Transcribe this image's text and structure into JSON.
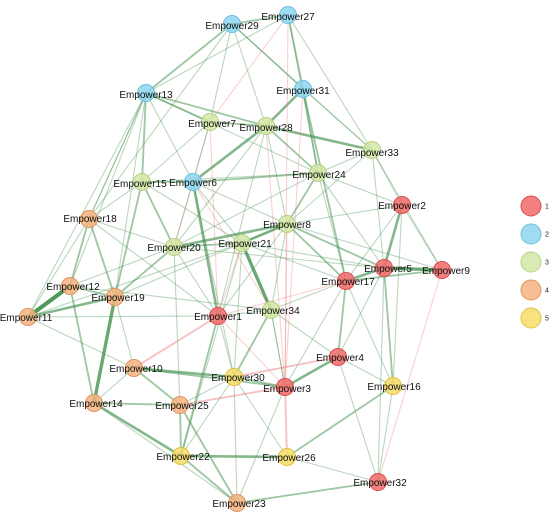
{
  "nodes": [
    {
      "id": "Empower1",
      "label": "Empower1",
      "group": "1"
    },
    {
      "id": "Empower2",
      "label": "Empower2",
      "group": "1"
    },
    {
      "id": "Empower3",
      "label": "Empower3",
      "group": "1"
    },
    {
      "id": "Empower4",
      "label": "Empower4",
      "group": "1"
    },
    {
      "id": "Empower5",
      "label": "Empower5",
      "group": "1"
    },
    {
      "id": "Empower9",
      "label": "Empower9",
      "group": "1"
    },
    {
      "id": "Empower17",
      "label": "Empower17",
      "group": "1"
    },
    {
      "id": "Empower32",
      "label": "Empower32",
      "group": "1"
    },
    {
      "id": "Empower6",
      "label": "Empower6",
      "group": "2"
    },
    {
      "id": "Empower13",
      "label": "Empower13",
      "group": "2"
    },
    {
      "id": "Empower27",
      "label": "Empower27",
      "group": "2"
    },
    {
      "id": "Empower29",
      "label": "Empower29",
      "group": "2"
    },
    {
      "id": "Empower31",
      "label": "Empower31",
      "group": "2"
    },
    {
      "id": "Empower7",
      "label": "Empower7",
      "group": "3"
    },
    {
      "id": "Empower8",
      "label": "Empower8",
      "group": "3"
    },
    {
      "id": "Empower15",
      "label": "Empower15",
      "group": "3"
    },
    {
      "id": "Empower20",
      "label": "Empower20",
      "group": "3"
    },
    {
      "id": "Empower21",
      "label": "Empower21",
      "group": "3"
    },
    {
      "id": "Empower24",
      "label": "Empower24",
      "group": "3"
    },
    {
      "id": "Empower28",
      "label": "Empower28",
      "group": "3"
    },
    {
      "id": "Empower33",
      "label": "Empower33",
      "group": "3"
    },
    {
      "id": "Empower34",
      "label": "Empower34",
      "group": "3"
    },
    {
      "id": "Empower10",
      "label": "Empower10",
      "group": "4"
    },
    {
      "id": "Empower11",
      "label": "Empower11",
      "group": "4"
    },
    {
      "id": "Empower12",
      "label": "Empower12",
      "group": "4"
    },
    {
      "id": "Empower14",
      "label": "Empower14",
      "group": "4"
    },
    {
      "id": "Empower18",
      "label": "Empower18",
      "group": "4"
    },
    {
      "id": "Empower19",
      "label": "Empower19",
      "group": "4"
    },
    {
      "id": "Empower23",
      "label": "Empower23",
      "group": "4"
    },
    {
      "id": "Empower25",
      "label": "Empower25",
      "group": "4"
    },
    {
      "id": "Empower16",
      "label": "Empower16",
      "group": "5"
    },
    {
      "id": "Empower22",
      "label": "Empower22",
      "group": "5"
    },
    {
      "id": "Empower26",
      "label": "Empower26",
      "group": "5"
    },
    {
      "id": "Empower30",
      "label": "Empower30",
      "group": "5"
    }
  ],
  "edges": [
    [
      "Empower11",
      "Empower12",
      5
    ],
    [
      "Empower11",
      "Empower19",
      3
    ],
    [
      "Empower11",
      "Empower10",
      1
    ],
    [
      "Empower11",
      "Empower18",
      1
    ],
    [
      "Empower11",
      "Empower1",
      1
    ],
    [
      "Empower11",
      "Empower21",
      1
    ],
    [
      "Empower12",
      "Empower19",
      2
    ],
    [
      "Empower12",
      "Empower18",
      2
    ],
    [
      "Empower12",
      "Empower14",
      2
    ],
    [
      "Empower12",
      "Empower20",
      1
    ],
    [
      "Empower12",
      "Empower34",
      1
    ],
    [
      "Empower19",
      "Empower14",
      4
    ],
    [
      "Empower19",
      "Empower18",
      2
    ],
    [
      "Empower19",
      "Empower15",
      2
    ],
    [
      "Empower19",
      "Empower10",
      1
    ],
    [
      "Empower19",
      "Empower20",
      2
    ],
    [
      "Empower19",
      "Empower8",
      1
    ],
    [
      "Empower19",
      "Empower13",
      1
    ],
    [
      "Empower18",
      "Empower15",
      1
    ],
    [
      "Empower18",
      "Empower20",
      1
    ],
    [
      "Empower18",
      "Empower13",
      1
    ],
    [
      "Empower18",
      "Empower29",
      1
    ],
    [
      "Empower18",
      "Empower1",
      1
    ],
    [
      "Empower10",
      "Empower1",
      2,
      "r"
    ],
    [
      "Empower10",
      "Empower30",
      3
    ],
    [
      "Empower10",
      "Empower25",
      2
    ],
    [
      "Empower10",
      "Empower14",
      1
    ],
    [
      "Empower10",
      "Empower3",
      2
    ],
    [
      "Empower14",
      "Empower22",
      3
    ],
    [
      "Empower14",
      "Empower25",
      2
    ],
    [
      "Empower14",
      "Empower23",
      1
    ],
    [
      "Empower25",
      "Empower22",
      2
    ],
    [
      "Empower25",
      "Empower3",
      2,
      "r"
    ],
    [
      "Empower25",
      "Empower30",
      1
    ],
    [
      "Empower25",
      "Empower23",
      2
    ],
    [
      "Empower25",
      "Empower20",
      1
    ],
    [
      "Empower22",
      "Empower23",
      2
    ],
    [
      "Empower22",
      "Empower26",
      3
    ],
    [
      "Empower22",
      "Empower1",
      2
    ],
    [
      "Empower22",
      "Empower30",
      1
    ],
    [
      "Empower22",
      "Empower21",
      1
    ],
    [
      "Empower23",
      "Empower32",
      2
    ],
    [
      "Empower23",
      "Empower30",
      1
    ],
    [
      "Empower23",
      "Empower3",
      1
    ],
    [
      "Empower26",
      "Empower3",
      2,
      "r"
    ],
    [
      "Empower26",
      "Empower16",
      2
    ],
    [
      "Empower26",
      "Empower30",
      1
    ],
    [
      "Empower26",
      "Empower32",
      1
    ],
    [
      "Empower32",
      "Empower16",
      1
    ],
    [
      "Empower32",
      "Empower9",
      1,
      "r"
    ],
    [
      "Empower32",
      "Empower5",
      1
    ],
    [
      "Empower32",
      "Empower4",
      1
    ],
    [
      "Empower16",
      "Empower5",
      2
    ],
    [
      "Empower16",
      "Empower4",
      1
    ],
    [
      "Empower16",
      "Empower17",
      1
    ],
    [
      "Empower16",
      "Empower2",
      1
    ],
    [
      "Empower3",
      "Empower4",
      3
    ],
    [
      "Empower3",
      "Empower30",
      2
    ],
    [
      "Empower3",
      "Empower1",
      1,
      "r"
    ],
    [
      "Empower3",
      "Empower34",
      1
    ],
    [
      "Empower3",
      "Empower8",
      1,
      "r"
    ],
    [
      "Empower3",
      "Empower17",
      1
    ],
    [
      "Empower3",
      "Empower28",
      1,
      "r"
    ],
    [
      "Empower4",
      "Empower17",
      2
    ],
    [
      "Empower4",
      "Empower5",
      1
    ],
    [
      "Empower4",
      "Empower30",
      2,
      "r"
    ],
    [
      "Empower4",
      "Empower34",
      1
    ],
    [
      "Empower17",
      "Empower5",
      3
    ],
    [
      "Empower17",
      "Empower9",
      2
    ],
    [
      "Empower17",
      "Empower8",
      2
    ],
    [
      "Empower17",
      "Empower21",
      1
    ],
    [
      "Empower17",
      "Empower34",
      1
    ],
    [
      "Empower17",
      "Empower24",
      1
    ],
    [
      "Empower17",
      "Empower1",
      1,
      "r"
    ],
    [
      "Empower5",
      "Empower9",
      4
    ],
    [
      "Empower5",
      "Empower2",
      3
    ],
    [
      "Empower5",
      "Empower8",
      2
    ],
    [
      "Empower5",
      "Empower24",
      1
    ],
    [
      "Empower5",
      "Empower33",
      1
    ],
    [
      "Empower5",
      "Empower21",
      1
    ],
    [
      "Empower5",
      "Empower20",
      1
    ],
    [
      "Empower9",
      "Empower2",
      1
    ],
    [
      "Empower9",
      "Empower8",
      1
    ],
    [
      "Empower9",
      "Empower33",
      1
    ],
    [
      "Empower2",
      "Empower33",
      1
    ],
    [
      "Empower2",
      "Empower24",
      1
    ],
    [
      "Empower2",
      "Empower8",
      1
    ],
    [
      "Empower2",
      "Empower17",
      1
    ],
    [
      "Empower8",
      "Empower21",
      3
    ],
    [
      "Empower8",
      "Empower20",
      3
    ],
    [
      "Empower8",
      "Empower24",
      2
    ],
    [
      "Empower8",
      "Empower28",
      1
    ],
    [
      "Empower8",
      "Empower6",
      1
    ],
    [
      "Empower8",
      "Empower34",
      1
    ],
    [
      "Empower8",
      "Empower1",
      1
    ],
    [
      "Empower21",
      "Empower34",
      4
    ],
    [
      "Empower21",
      "Empower20",
      2
    ],
    [
      "Empower21",
      "Empower1",
      1,
      "r"
    ],
    [
      "Empower21",
      "Empower15",
      1
    ],
    [
      "Empower21",
      "Empower6",
      1
    ],
    [
      "Empower21",
      "Empower30",
      1
    ],
    [
      "Empower20",
      "Empower15",
      2
    ],
    [
      "Empower20",
      "Empower7",
      1,
      "r"
    ],
    [
      "Empower20",
      "Empower6",
      1
    ],
    [
      "Empower20",
      "Empower1",
      1
    ],
    [
      "Empower34",
      "Empower1",
      1
    ],
    [
      "Empower34",
      "Empower30",
      2
    ],
    [
      "Empower34",
      "Empower6",
      1,
      "r"
    ],
    [
      "Empower34",
      "Empower3",
      1
    ],
    [
      "Empower1",
      "Empower6",
      3
    ],
    [
      "Empower1",
      "Empower30",
      1
    ],
    [
      "Empower1",
      "Empower7",
      1,
      "r"
    ],
    [
      "Empower1",
      "Empower28",
      1
    ],
    [
      "Empower30",
      "Empower6",
      1
    ],
    [
      "Empower15",
      "Empower6",
      2
    ],
    [
      "Empower15",
      "Empower13",
      2
    ],
    [
      "Empower15",
      "Empower7",
      1
    ],
    [
      "Empower15",
      "Empower24",
      1
    ],
    [
      "Empower6",
      "Empower28",
      3
    ],
    [
      "Empower6",
      "Empower7",
      1
    ],
    [
      "Empower6",
      "Empower24",
      2
    ],
    [
      "Empower6",
      "Empower13",
      1
    ],
    [
      "Empower7",
      "Empower13",
      2
    ],
    [
      "Empower7",
      "Empower28",
      2
    ],
    [
      "Empower7",
      "Empower29",
      1
    ],
    [
      "Empower28",
      "Empower31",
      3
    ],
    [
      "Empower28",
      "Empower33",
      3
    ],
    [
      "Empower28",
      "Empower24",
      2
    ],
    [
      "Empower28",
      "Empower13",
      2
    ],
    [
      "Empower28",
      "Empower29",
      1
    ],
    [
      "Empower28",
      "Empower20",
      1
    ],
    [
      "Empower24",
      "Empower33",
      1
    ],
    [
      "Empower24",
      "Empower31",
      2
    ],
    [
      "Empower24",
      "Empower13",
      1
    ],
    [
      "Empower24",
      "Empower20",
      1
    ],
    [
      "Empower33",
      "Empower31",
      1
    ],
    [
      "Empower33",
      "Empower8",
      1
    ],
    [
      "Empower31",
      "Empower27",
      2
    ],
    [
      "Empower31",
      "Empower29",
      1
    ],
    [
      "Empower31",
      "Empower17",
      2
    ],
    [
      "Empower31",
      "Empower3",
      1,
      "r"
    ],
    [
      "Empower29",
      "Empower27",
      2
    ],
    [
      "Empower29",
      "Empower13",
      2
    ],
    [
      "Empower29",
      "Empower31",
      1
    ],
    [
      "Empower29",
      "Empower33",
      1
    ],
    [
      "Empower27",
      "Empower13",
      1
    ],
    [
      "Empower27",
      "Empower7",
      1,
      "r"
    ],
    [
      "Empower27",
      "Empower24",
      1
    ],
    [
      "Empower27",
      "Empower3",
      1,
      "r"
    ],
    [
      "Empower27",
      "Empower33",
      1
    ],
    [
      "Empower13",
      "Empower11",
      1
    ],
    [
      "Empower13",
      "Empower18",
      1
    ],
    [
      "Empower13",
      "Empower12",
      1
    ]
  ],
  "legend": [
    {
      "label": "1",
      "color": "#f26b6b"
    },
    {
      "label": "2",
      "color": "#8fd6ee"
    },
    {
      "label": "3",
      "color": "#d3e6a6"
    },
    {
      "label": "4",
      "color": "#f4b37f"
    },
    {
      "label": "5",
      "color": "#f7dd6a"
    }
  ],
  "group_stroke": {
    "1": "#d85050",
    "2": "#6ec0df",
    "3": "#b9d183",
    "4": "#de9660",
    "5": "#e2bf3e"
  },
  "edge_colors": {
    "green": "#3f8f4a",
    "red": "#f08080"
  }
}
